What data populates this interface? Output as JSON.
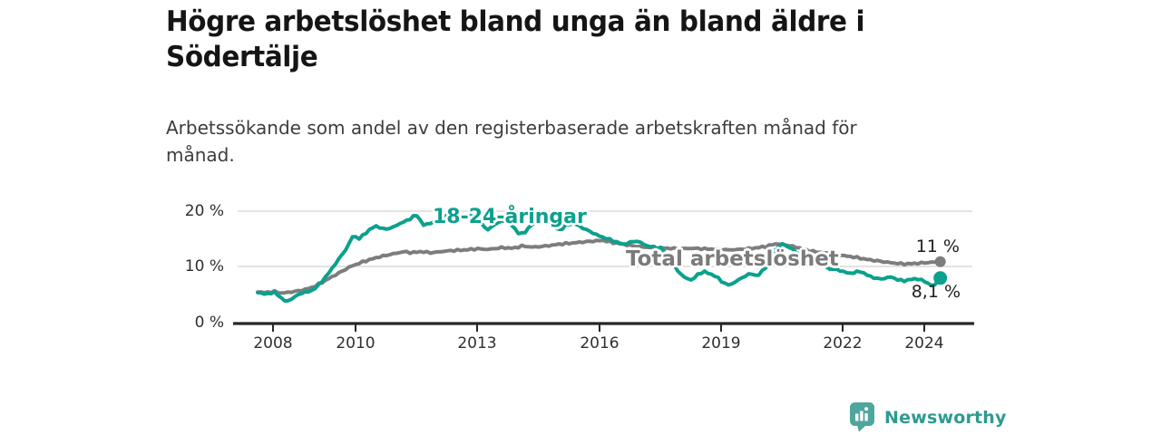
{
  "header": {
    "title_lines": [
      "Högre arbetslöshet bland unga än bland äldre i",
      "Södertälje"
    ],
    "subtitle_lines": [
      "Arbetssökande som andel av den registerbaserade arbetskraften månad för",
      "månad."
    ]
  },
  "branding": {
    "logo_text": "Newsworthy",
    "logo_text_color": "#2e9a92",
    "logo_icon_color": "#4fa69d"
  },
  "chart_data": {
    "type": "line",
    "unit": "percent",
    "grid": true,
    "legend": "inline-labels-on-lines",
    "x_axis": {
      "tick_labels": [
        "2008",
        "2010",
        "2013",
        "2016",
        "2019",
        "2022",
        "2024"
      ],
      "tick_years": [
        2008,
        2010,
        2013,
        2016,
        2019,
        2022,
        2024
      ],
      "range_years": [
        2007.1,
        2025.2
      ]
    },
    "y_axis": {
      "tick_labels": [
        "20 %",
        "10 %",
        "0 %"
      ],
      "tick_values": [
        20,
        10,
        0
      ],
      "ylim": [
        0,
        22
      ]
    },
    "series": [
      {
        "name": "18-24-åringar",
        "color": "#0ba18d",
        "end_label": "8,1 %",
        "latest_value": 8.1,
        "points": [
          [
            2007.6,
            5.5
          ],
          [
            2007.8,
            5.2
          ],
          [
            2008.0,
            5.6
          ],
          [
            2008.15,
            4.8
          ],
          [
            2008.3,
            3.8
          ],
          [
            2008.5,
            4.7
          ],
          [
            2008.7,
            5.5
          ],
          [
            2008.9,
            5.7
          ],
          [
            2009.1,
            6.8
          ],
          [
            2009.35,
            9.0
          ],
          [
            2009.6,
            11.5
          ],
          [
            2009.8,
            13.5
          ],
          [
            2009.95,
            15.7
          ],
          [
            2010.1,
            15.1
          ],
          [
            2010.3,
            16.4
          ],
          [
            2010.5,
            17.4
          ],
          [
            2010.7,
            16.8
          ],
          [
            2010.9,
            17.0
          ],
          [
            2011.1,
            17.8
          ],
          [
            2011.3,
            18.4
          ],
          [
            2011.5,
            19.4
          ],
          [
            2011.7,
            17.4
          ],
          [
            2011.85,
            17.9
          ],
          [
            2012.1,
            18.4
          ],
          [
            2012.3,
            19.5
          ],
          [
            2012.5,
            18.8
          ],
          [
            2012.7,
            19.0
          ],
          [
            2012.9,
            19.2
          ],
          [
            2013.1,
            17.9
          ],
          [
            2013.25,
            16.6
          ],
          [
            2013.5,
            18.0
          ],
          [
            2013.75,
            18.4
          ],
          [
            2014.0,
            16.2
          ],
          [
            2014.15,
            15.9
          ],
          [
            2014.3,
            17.4
          ],
          [
            2014.5,
            18.2
          ],
          [
            2014.7,
            18.6
          ],
          [
            2014.9,
            17.1
          ],
          [
            2015.05,
            16.6
          ],
          [
            2015.2,
            17.6
          ],
          [
            2015.4,
            17.8
          ],
          [
            2015.6,
            17.0
          ],
          [
            2015.8,
            16.3
          ],
          [
            2016.0,
            15.6
          ],
          [
            2016.2,
            15.1
          ],
          [
            2016.4,
            14.6
          ],
          [
            2016.6,
            14.1
          ],
          [
            2016.8,
            14.5
          ],
          [
            2016.95,
            14.7
          ],
          [
            2017.15,
            13.9
          ],
          [
            2017.35,
            13.6
          ],
          [
            2017.55,
            13.4
          ],
          [
            2017.75,
            11.3
          ],
          [
            2017.95,
            9.3
          ],
          [
            2018.1,
            8.2
          ],
          [
            2018.3,
            7.7
          ],
          [
            2018.45,
            8.9
          ],
          [
            2018.6,
            9.2
          ],
          [
            2018.75,
            8.8
          ],
          [
            2018.9,
            8.3
          ],
          [
            2019.05,
            7.3
          ],
          [
            2019.2,
            6.8
          ],
          [
            2019.4,
            7.6
          ],
          [
            2019.6,
            8.5
          ],
          [
            2019.75,
            8.9
          ],
          [
            2019.9,
            8.4
          ],
          [
            2020.05,
            9.6
          ],
          [
            2020.2,
            10.9
          ],
          [
            2020.35,
            13.2
          ],
          [
            2020.5,
            14.2
          ],
          [
            2020.65,
            13.7
          ],
          [
            2020.8,
            13.0
          ],
          [
            2020.95,
            12.2
          ],
          [
            2021.1,
            11.2
          ],
          [
            2021.25,
            10.7
          ],
          [
            2021.4,
            11.0
          ],
          [
            2021.55,
            10.1
          ],
          [
            2021.7,
            9.7
          ],
          [
            2021.85,
            9.6
          ],
          [
            2022.0,
            9.3
          ],
          [
            2022.15,
            8.9
          ],
          [
            2022.3,
            9.1
          ],
          [
            2022.45,
            9.3
          ],
          [
            2022.6,
            8.6
          ],
          [
            2022.75,
            8.2
          ],
          [
            2022.9,
            7.9
          ],
          [
            2023.05,
            8.1
          ],
          [
            2023.2,
            8.3
          ],
          [
            2023.35,
            7.8
          ],
          [
            2023.5,
            7.6
          ],
          [
            2023.65,
            7.8
          ],
          [
            2023.8,
            8.0
          ],
          [
            2023.95,
            7.7
          ],
          [
            2024.1,
            7.2
          ],
          [
            2024.2,
            6.6
          ],
          [
            2024.3,
            7.1
          ],
          [
            2024.4,
            8.1
          ]
        ]
      },
      {
        "name": "Total arbetslöshet",
        "color": "#7d7d7d",
        "end_label": "11 %",
        "latest_value": 11.0,
        "points": [
          [
            2007.6,
            5.6
          ],
          [
            2007.8,
            5.5
          ],
          [
            2008.0,
            5.7
          ],
          [
            2008.2,
            5.4
          ],
          [
            2008.4,
            5.6
          ],
          [
            2008.6,
            5.8
          ],
          [
            2008.8,
            6.1
          ],
          [
            2009.0,
            6.6
          ],
          [
            2009.3,
            7.8
          ],
          [
            2009.6,
            9.0
          ],
          [
            2009.9,
            10.2
          ],
          [
            2010.2,
            11.0
          ],
          [
            2010.5,
            11.7
          ],
          [
            2010.8,
            12.2
          ],
          [
            2011.0,
            12.5
          ],
          [
            2011.2,
            12.8
          ],
          [
            2011.4,
            12.6
          ],
          [
            2011.6,
            12.8
          ],
          [
            2011.9,
            12.6
          ],
          [
            2012.1,
            12.8
          ],
          [
            2012.4,
            13.0
          ],
          [
            2012.7,
            13.1
          ],
          [
            2013.0,
            13.3
          ],
          [
            2013.3,
            13.2
          ],
          [
            2013.6,
            13.5
          ],
          [
            2013.9,
            13.4
          ],
          [
            2014.1,
            13.8
          ],
          [
            2014.4,
            13.6
          ],
          [
            2014.7,
            13.8
          ],
          [
            2015.0,
            14.1
          ],
          [
            2015.3,
            14.3
          ],
          [
            2015.6,
            14.5
          ],
          [
            2015.9,
            14.7
          ],
          [
            2016.1,
            14.8
          ],
          [
            2016.35,
            14.4
          ],
          [
            2016.6,
            14.1
          ],
          [
            2016.85,
            13.8
          ],
          [
            2017.1,
            13.6
          ],
          [
            2017.4,
            13.5
          ],
          [
            2017.7,
            13.4
          ],
          [
            2018.0,
            13.3
          ],
          [
            2018.3,
            13.4
          ],
          [
            2018.6,
            13.3
          ],
          [
            2018.9,
            13.2
          ],
          [
            2019.2,
            13.1
          ],
          [
            2019.5,
            13.2
          ],
          [
            2019.8,
            13.4
          ],
          [
            2020.1,
            13.7
          ],
          [
            2020.35,
            14.2
          ],
          [
            2020.6,
            14.0
          ],
          [
            2020.9,
            13.5
          ],
          [
            2021.2,
            12.9
          ],
          [
            2021.5,
            12.6
          ],
          [
            2021.8,
            12.3
          ],
          [
            2022.0,
            12.1
          ],
          [
            2022.3,
            11.8
          ],
          [
            2022.6,
            11.4
          ],
          [
            2022.9,
            11.1
          ],
          [
            2023.2,
            10.8
          ],
          [
            2023.5,
            10.6
          ],
          [
            2023.8,
            10.7
          ],
          [
            2024.0,
            10.8
          ],
          [
            2024.2,
            10.9
          ],
          [
            2024.4,
            11.0
          ]
        ]
      }
    ]
  }
}
